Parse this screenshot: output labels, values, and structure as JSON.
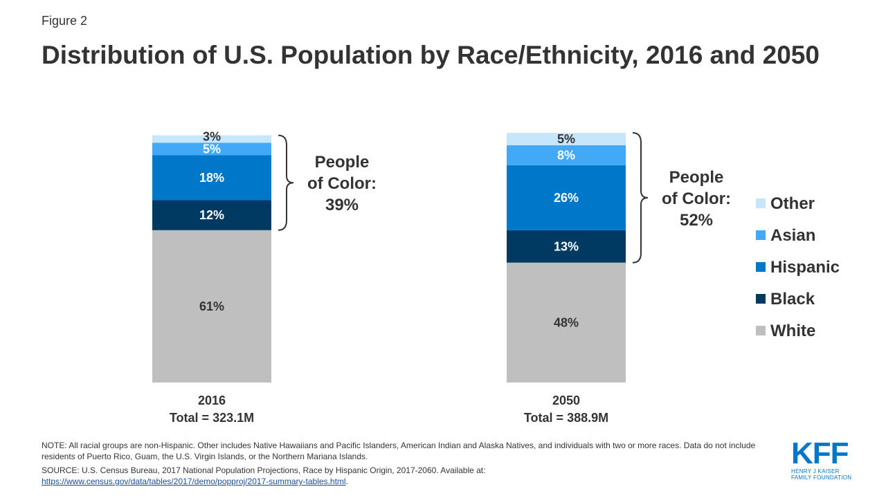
{
  "figure_label": "Figure 2",
  "title": "Distribution of U.S. Population by Race/Ethnicity, 2016 and 2050",
  "chart_data": {
    "type": "bar",
    "stacked": true,
    "unit": "%",
    "categories": [
      "2016",
      "2050"
    ],
    "category_subtitles": [
      "Total = 323.1M",
      "Total = 388.9M"
    ],
    "series": [
      {
        "name": "White",
        "color": "#bfbfbf",
        "values": [
          61,
          48
        ],
        "labels": [
          "61%",
          "48%"
        ],
        "label_color": "#333333"
      },
      {
        "name": "Black",
        "color": "#003a63",
        "values": [
          12,
          13
        ],
        "labels": [
          "12%",
          "13%"
        ],
        "label_color": "#ffffff"
      },
      {
        "name": "Hispanic",
        "color": "#0077c8",
        "values": [
          18,
          26
        ],
        "labels": [
          "18%",
          "26%"
        ],
        "label_color": "#ffffff"
      },
      {
        "name": "Asian",
        "color": "#41a9f5",
        "values": [
          5,
          8
        ],
        "labels": [
          "5%",
          "8%"
        ],
        "label_color": "#ffffff"
      },
      {
        "name": "Other",
        "color": "#c5e6fb",
        "values": [
          3,
          5
        ],
        "labels": [
          "3%",
          "5%"
        ],
        "label_color": "#333333"
      }
    ],
    "annotations": [
      {
        "bar": "2016",
        "text": [
          "People",
          "of Color:",
          "39%"
        ]
      },
      {
        "bar": "2050",
        "text": [
          "People",
          "of Color:",
          "52%"
        ]
      }
    ],
    "legend": [
      "Other",
      "Asian",
      "Hispanic",
      "Black",
      "White"
    ],
    "legend_position": "right"
  },
  "note": "NOTE: All racial groups are non-Hispanic. Other includes Native Hawaiians and Pacific Islanders, American Indian and Alaska Natives, and individuals with two or more races. Data do not include residents of Puerto Rico, Guam, the U.S. Virgin Islands, or the Northern Mariana Islands.",
  "source": {
    "text": "SOURCE: U.S. Census Bureau, 2017 National Population Projections, Race by Hispanic Origin, 2017-2060. Available at:",
    "link": "https://www.census.gov/data/tables/2017/demo/popproj/2017-summary-tables.html",
    "period": "."
  },
  "logo": {
    "mark": "KFF",
    "line1": "HENRY J KAISER",
    "line2": "FAMILY FOUNDATION"
  }
}
